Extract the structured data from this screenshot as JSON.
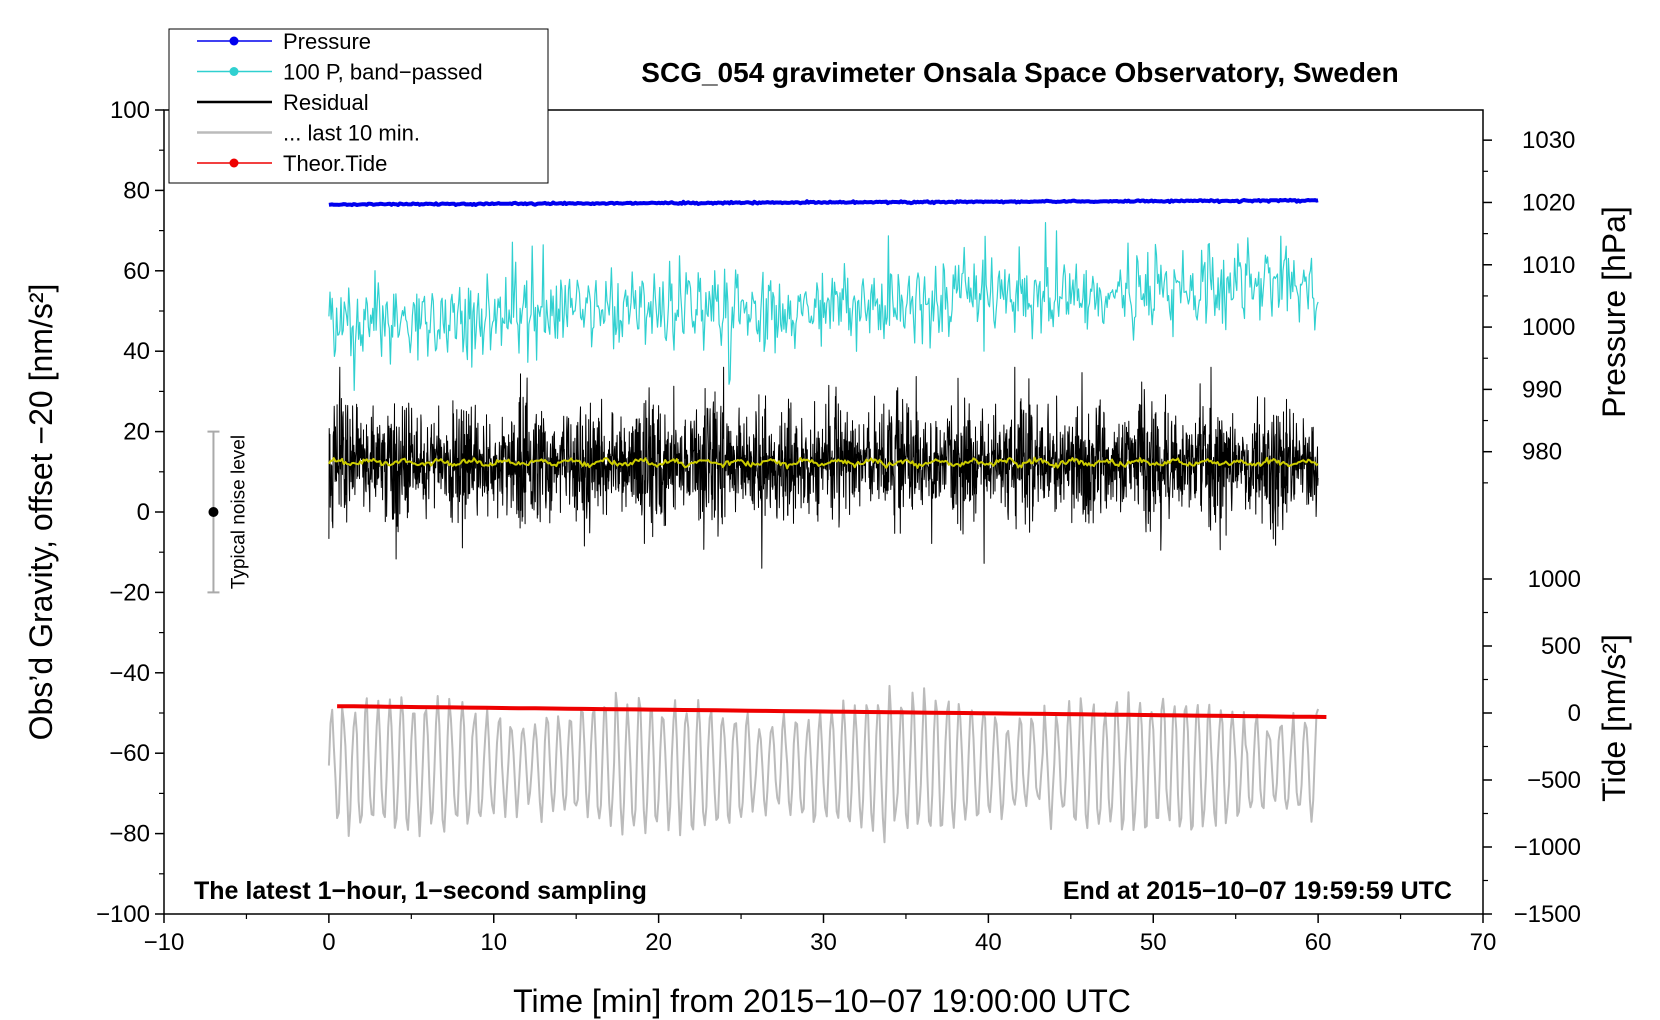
{
  "chart_data": {
    "type": "line",
    "title": "SCG_054 gravimeter Onsala Space Observatory, Sweden",
    "xlabel": "Time [min] from 2015−10−07 19:00:00 UTC",
    "ylabel_left": "Obs’d Gravity, offset −20 [nm/s²]",
    "ylabel_right_top": "Pressure [hPa]",
    "ylabel_right_bottom": "Tide [nm/s²]",
    "xlim": [
      -10,
      70
    ],
    "ylim_left": [
      -100,
      100
    ],
    "x_ticks": [
      -10,
      0,
      10,
      20,
      30,
      40,
      50,
      60,
      70
    ],
    "x_tick_labels": [
      "−10",
      "0",
      "10",
      "20",
      "30",
      "40",
      "50",
      "60",
      "70"
    ],
    "y_ticks": [
      100,
      80,
      60,
      40,
      20,
      0,
      -20,
      -40,
      -60,
      -80,
      -100
    ],
    "y_tick_labels": [
      "100",
      "80",
      "60",
      "40",
      "20",
      "0",
      "−20",
      "−40",
      "−60",
      "−80",
      "−100"
    ],
    "pressure_axis": {
      "ticks": [
        1030,
        1020,
        1010,
        1000,
        990,
        980
      ],
      "tick_labels": [
        "1030",
        "1020",
        "1010",
        "1000",
        "990",
        "980"
      ],
      "map_note": "1020 hPa aligns with 77 nm/s2 on the left axis; 10 hPa spans 15.5 nm/s2"
    },
    "tide_axis": {
      "ticks": [
        1000,
        500,
        0,
        -500,
        -1000,
        -1500
      ],
      "tick_labels": [
        "1000",
        "500",
        "0",
        "−500",
        "−1000",
        "−1500"
      ],
      "map_note": "0 nm/s2 tide aligns with -50 on the left axis; 500 spans 16.67"
    },
    "series": [
      {
        "name": "Pressure",
        "color": "#0000ee",
        "x_range": [
          0,
          60
        ],
        "approx_level_left_units": [
          76.5,
          77.5
        ]
      },
      {
        "name": "100 P, band−passed",
        "color": "#30d0d0",
        "x_range": [
          0,
          60
        ],
        "approx_mean_left_units": [
          47,
          57
        ],
        "approx_amplitude": 8
      },
      {
        "name": "Residual",
        "color": "#000000",
        "x_range": [
          0,
          60
        ],
        "approx_mean_left_units": 12,
        "approx_range": [
          -14,
          36
        ]
      },
      {
        "name": "... last 10 min.",
        "color": "#bbbbbb",
        "x_range": [
          0,
          60
        ],
        "approx_mean_left_units": -63,
        "approx_range": [
          -84,
          -42
        ]
      },
      {
        "name": "Theor.Tide",
        "color": "#ee0000",
        "x_range": [
          0.5,
          60.5
        ],
        "approx_left_units": [
          -48.3,
          -51
        ]
      },
      {
        "name": "Residual smoothed",
        "color": "#cccc00",
        "x_range": [
          0,
          60
        ],
        "approx_mean_left_units": 12.3
      }
    ],
    "noise_bar": {
      "x": -7,
      "center": 0,
      "half_range": 20,
      "label": "Typical noise level"
    },
    "annotations": {
      "bottom_left": "The latest 1−hour, 1−second sampling",
      "bottom_right": "End at 2015−10−07 19:59:59 UTC"
    },
    "legend": {
      "placement": "top-left",
      "entries": [
        {
          "label": "Pressure",
          "color": "#0000ee",
          "marker": true
        },
        {
          "label": "100 P, band−passed",
          "color": "#30d0d0",
          "marker": true
        },
        {
          "label": "Residual",
          "color": "#000000",
          "marker": false
        },
        {
          "label": "... last 10 min.",
          "color": "#bbbbbb",
          "marker": false
        },
        {
          "label": "Theor.Tide",
          "color": "#ee0000",
          "marker": true
        }
      ]
    }
  }
}
